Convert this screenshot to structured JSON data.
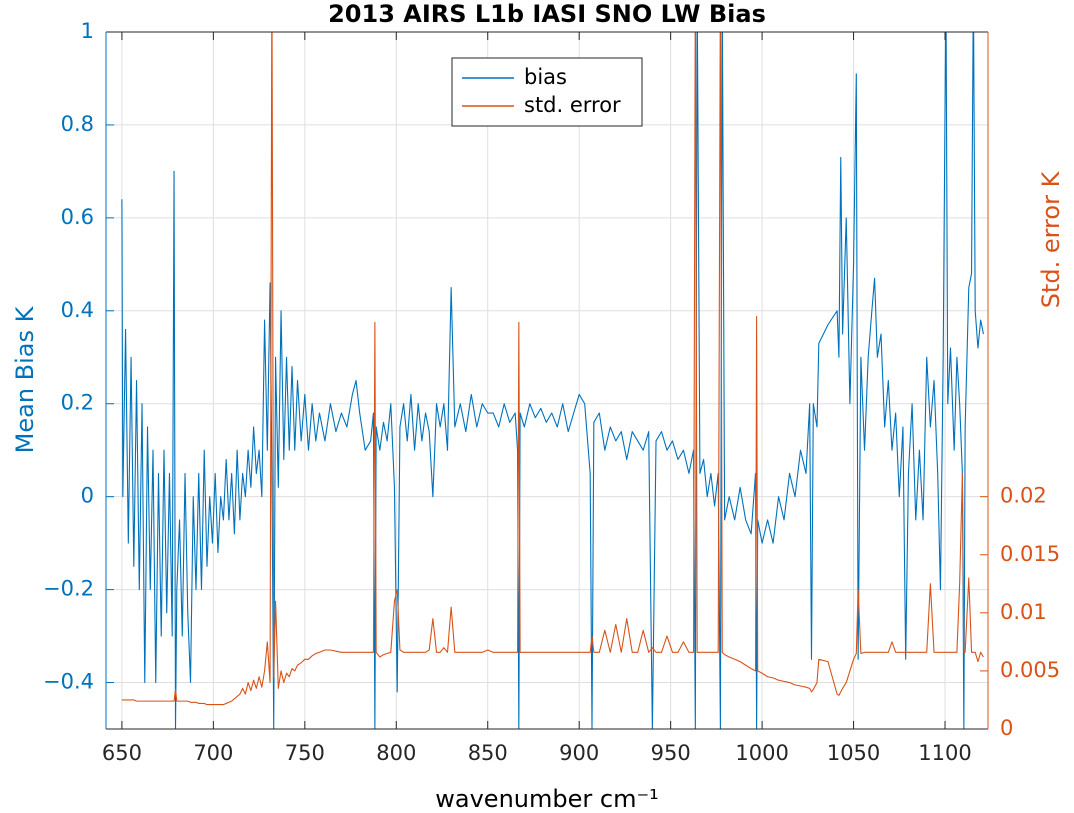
{
  "chart_data": {
    "type": "line",
    "title": "2013 AIRS L1b IASI SNO LW Bias",
    "x_label": "wavenumber cm⁻¹",
    "y_label": "Mean Bias K",
    "y2_label": "Std. error K",
    "xlim": [
      641.3,
      1123.5
    ],
    "xticks": [
      650,
      700,
      750,
      800,
      850,
      900,
      950,
      1000,
      1050,
      1100
    ],
    "ylim": [
      -0.5,
      1
    ],
    "yticks": [
      {
        "value": -0.4,
        "label": "−0.4"
      },
      {
        "value": -0.2,
        "label": "−0.2"
      },
      0,
      0.2,
      0.4,
      0.6,
      0.8,
      1
    ],
    "y2lim": [
      0,
      0.06
    ],
    "y2ticks": [
      0,
      0.005,
      0.01,
      0.015,
      0.02
    ],
    "grid": true,
    "legend": "upper center",
    "x": [
      650,
      650.5,
      652,
      653.5,
      655,
      656.5,
      658,
      659.5,
      661,
      662.5,
      664,
      665.5,
      667,
      668.5,
      670,
      671.5,
      673,
      674.5,
      676,
      677.5,
      678.5,
      679.3,
      680,
      681.5,
      683,
      684.5,
      686,
      687.5,
      689,
      690.5,
      692,
      693.5,
      695,
      696.5,
      698,
      699.5,
      701,
      702.5,
      704,
      705.5,
      707,
      708.5,
      710,
      711.5,
      713,
      714.5,
      716,
      717.5,
      719,
      720.5,
      722,
      723.5,
      725,
      726.5,
      728,
      729.5,
      731,
      732,
      733,
      734,
      735.5,
      737,
      738.5,
      740,
      741.5,
      743,
      744.5,
      746,
      748,
      750,
      752,
      754,
      756,
      758,
      761,
      764,
      767,
      770,
      773,
      776,
      778,
      780,
      783,
      786,
      787.5,
      788.3,
      789,
      791,
      793,
      795,
      797,
      799,
      800.5,
      802,
      804,
      806,
      808,
      810,
      812,
      814,
      816,
      818,
      820,
      822,
      824,
      826,
      828,
      830,
      832,
      835,
      838,
      841,
      844,
      847,
      850,
      853,
      856,
      859,
      862,
      865,
      866.3,
      867,
      867.7,
      870,
      873,
      876,
      879,
      882,
      885,
      888,
      891,
      894,
      897,
      900,
      903,
      906,
      907,
      908,
      911,
      914,
      917,
      920,
      923,
      926,
      929,
      932,
      935,
      938,
      940,
      942,
      945,
      948,
      951,
      954,
      957,
      960,
      962.5,
      963.5,
      964.5,
      966,
      968,
      970,
      972,
      974,
      976,
      977.2,
      978.2,
      979.5,
      982,
      985,
      988,
      991,
      994,
      996.4,
      997,
      997.6,
      1000,
      1003,
      1006,
      1009,
      1012,
      1015,
      1018,
      1021,
      1024,
      1026,
      1027,
      1028,
      1030,
      1031,
      1036,
      1041,
      1042,
      1043,
      1044,
      1046,
      1048,
      1050,
      1051.5,
      1052.5,
      1054,
      1056,
      1058,
      1060,
      1061.5,
      1063,
      1065,
      1067,
      1069,
      1071,
      1073,
      1075,
      1077,
      1078.5,
      1080,
      1082,
      1084,
      1086,
      1088,
      1090,
      1092,
      1094,
      1096,
      1097.5,
      1099,
      1100.5,
      1101.5,
      1103,
      1105,
      1106.5,
      1108,
      1109.5,
      1110.3,
      1111,
      1113,
      1114.5,
      1115.5,
      1116.5,
      1118,
      1119.5,
      1121
    ],
    "series": [
      {
        "name": "bias",
        "color": "#0072bd",
        "values": [
          0.64,
          0,
          0.36,
          -0.1,
          0.3,
          -0.15,
          0.25,
          -0.2,
          0.2,
          -0.4,
          0.15,
          -0.2,
          0.1,
          -0.4,
          0.05,
          -0.3,
          0.1,
          -0.25,
          0.05,
          -0.3,
          0.7,
          -0.5,
          -0.2,
          -0.05,
          -0.3,
          0.05,
          -0.25,
          -0.4,
          0,
          -0.2,
          0.05,
          -0.2,
          0.1,
          -0.15,
          0,
          -0.1,
          0.05,
          -0.12,
          0,
          -0.05,
          0.08,
          -0.05,
          0.05,
          -0.08,
          0.1,
          -0.05,
          0.05,
          0,
          0.1,
          0.02,
          0.15,
          0.05,
          0.1,
          0,
          0.38,
          0.1,
          0.46,
          0.05,
          -0.5,
          0.3,
          0.02,
          0.4,
          0.08,
          0.3,
          0.1,
          0.28,
          0.1,
          0.25,
          0.12,
          0.22,
          0.1,
          0.2,
          0.12,
          0.18,
          0.12,
          0.2,
          0.14,
          0.18,
          0.15,
          0.22,
          0.25,
          0.18,
          0.1,
          0.12,
          0.18,
          -0.5,
          0.15,
          0.1,
          0.16,
          0.12,
          0.2,
          0.02,
          -0.42,
          0.15,
          0.2,
          0.12,
          0.22,
          0.1,
          0.2,
          0.12,
          0.18,
          0.14,
          0,
          0.2,
          0.15,
          0.2,
          0.1,
          0.45,
          0.15,
          0.2,
          0.14,
          0.22,
          0.15,
          0.2,
          0.18,
          0.18,
          0.15,
          0.2,
          0.16,
          0.18,
          0.1,
          -0.5,
          0.18,
          0.15,
          0.2,
          0.17,
          0.19,
          0.16,
          0.18,
          0.15,
          0.2,
          0.14,
          0.18,
          0.22,
          0.2,
          0.05,
          -0.5,
          0.16,
          0.18,
          0.1,
          0.15,
          0.12,
          0.14,
          0.08,
          0.14,
          0.12,
          0.1,
          0.14,
          -0.5,
          0.12,
          0.14,
          0.1,
          0.12,
          0.08,
          0.1,
          0.05,
          0.1,
          -0.5,
          1.1,
          0.05,
          0.08,
          0,
          0.05,
          -0.02,
          0.05,
          -0.5,
          1.1,
          -0.05,
          0,
          -0.05,
          0.02,
          -0.05,
          -0.08,
          0.05,
          -0.5,
          -0.05,
          -0.1,
          -0.05,
          -0.1,
          0,
          -0.05,
          0.05,
          0,
          0.1,
          0.05,
          0.2,
          -0.35,
          0.2,
          0.15,
          0.33,
          0.37,
          0.4,
          0.3,
          0.73,
          0.35,
          0.6,
          0.2,
          0.5,
          0.91,
          -0.35,
          0.3,
          0.1,
          0.3,
          0.4,
          0.47,
          0.3,
          0.35,
          0.15,
          0.25,
          0.1,
          0.18,
          0,
          0.15,
          -0.35,
          0.05,
          0.2,
          -0.05,
          0.1,
          -0.05,
          0.3,
          0.15,
          0.25,
          0.05,
          -0.2,
          0.3,
          1.1,
          0.2,
          0.32,
          0.1,
          0.3,
          0.2,
          0.05,
          -0.5,
          0.15,
          0.45,
          0.48,
          1.1,
          0.4,
          0.32,
          0.38,
          0.35
        ]
      },
      {
        "name": "std. error",
        "color": "#d95319",
        "axis": "y2",
        "values": [
          0.0025,
          0.0025,
          0.0025,
          0.0025,
          0.0025,
          0.0025,
          0.0024,
          0.0024,
          0.0024,
          0.0024,
          0.0024,
          0.0024,
          0.0024,
          0.0024,
          0.0024,
          0.0024,
          0.0024,
          0.0024,
          0.0024,
          0.0024,
          0.0024,
          0.0034,
          0.0024,
          0.0024,
          0.0024,
          0.0024,
          0.0024,
          0.0023,
          0.0023,
          0.0023,
          0.0022,
          0.0022,
          0.0022,
          0.0021,
          0.0021,
          0.0021,
          0.0021,
          0.0021,
          0.0021,
          0.0021,
          0.0022,
          0.0023,
          0.0024,
          0.0026,
          0.0028,
          0.003,
          0.0035,
          0.003,
          0.004,
          0.0033,
          0.0042,
          0.0035,
          0.0045,
          0.0036,
          0.005,
          0.0075,
          0.004,
          0.065,
          0.0045,
          0.011,
          0.0035,
          0.005,
          0.004,
          0.0048,
          0.0045,
          0.0052,
          0.005,
          0.0055,
          0.0057,
          0.006,
          0.006,
          0.0063,
          0.0065,
          0.0066,
          0.0068,
          0.0068,
          0.0067,
          0.0066,
          0.0066,
          0.0066,
          0.0066,
          0.0066,
          0.0066,
          0.0066,
          0.0066,
          0.035,
          0.0066,
          0.0062,
          0.0064,
          0.0065,
          0.0066,
          0.011,
          0.012,
          0.0068,
          0.0066,
          0.0066,
          0.0066,
          0.0066,
          0.0066,
          0.0066,
          0.0066,
          0.0068,
          0.0095,
          0.0066,
          0.0066,
          0.007,
          0.0066,
          0.0105,
          0.0066,
          0.0066,
          0.0066,
          0.0066,
          0.0066,
          0.0066,
          0.0068,
          0.0066,
          0.0066,
          0.0066,
          0.0066,
          0.0066,
          0.0066,
          0.035,
          0.0066,
          0.0066,
          0.0066,
          0.0066,
          0.0066,
          0.0066,
          0.0066,
          0.0066,
          0.0066,
          0.0066,
          0.0066,
          0.0066,
          0.0066,
          0.0066,
          0.008,
          0.0066,
          0.0066,
          0.0085,
          0.0066,
          0.009,
          0.0066,
          0.0095,
          0.0066,
          0.0066,
          0.0085,
          0.0066,
          0.007,
          0.0066,
          0.0066,
          0.008,
          0.0066,
          0.0066,
          0.0075,
          0.0066,
          0.0066,
          0.065,
          0.0066,
          0.0066,
          0.0066,
          0.0066,
          0.0066,
          0.0066,
          0.0066,
          0.065,
          0.0066,
          0.0064,
          0.0062,
          0.006,
          0.0058,
          0.0055,
          0.0052,
          0.005,
          0.0355,
          0.005,
          0.0048,
          0.0045,
          0.0044,
          0.0042,
          0.0041,
          0.004,
          0.0038,
          0.0037,
          0.0036,
          0.0035,
          0.0032,
          0.0034,
          0.004,
          0.006,
          0.0058,
          0.003,
          0.0029,
          0.0032,
          0.0035,
          0.004,
          0.005,
          0.006,
          0.0065,
          0.012,
          0.0065,
          0.0066,
          0.0066,
          0.0066,
          0.0066,
          0.0066,
          0.0066,
          0.0066,
          0.0066,
          0.0075,
          0.0066,
          0.0066,
          0.0066,
          0.0066,
          0.0066,
          0.0066,
          0.0066,
          0.0066,
          0.0066,
          0.0066,
          0.0125,
          0.0066,
          0.0066,
          0.0066,
          0.0066,
          0.0066,
          0.0066,
          0.0066,
          0.0066,
          0.0066,
          0.0125,
          0.022,
          0.0066,
          0.0066,
          0.013,
          0.0066,
          0.0066,
          0.0066,
          0.0058,
          0.0066,
          0.0062
        ]
      }
    ]
  }
}
